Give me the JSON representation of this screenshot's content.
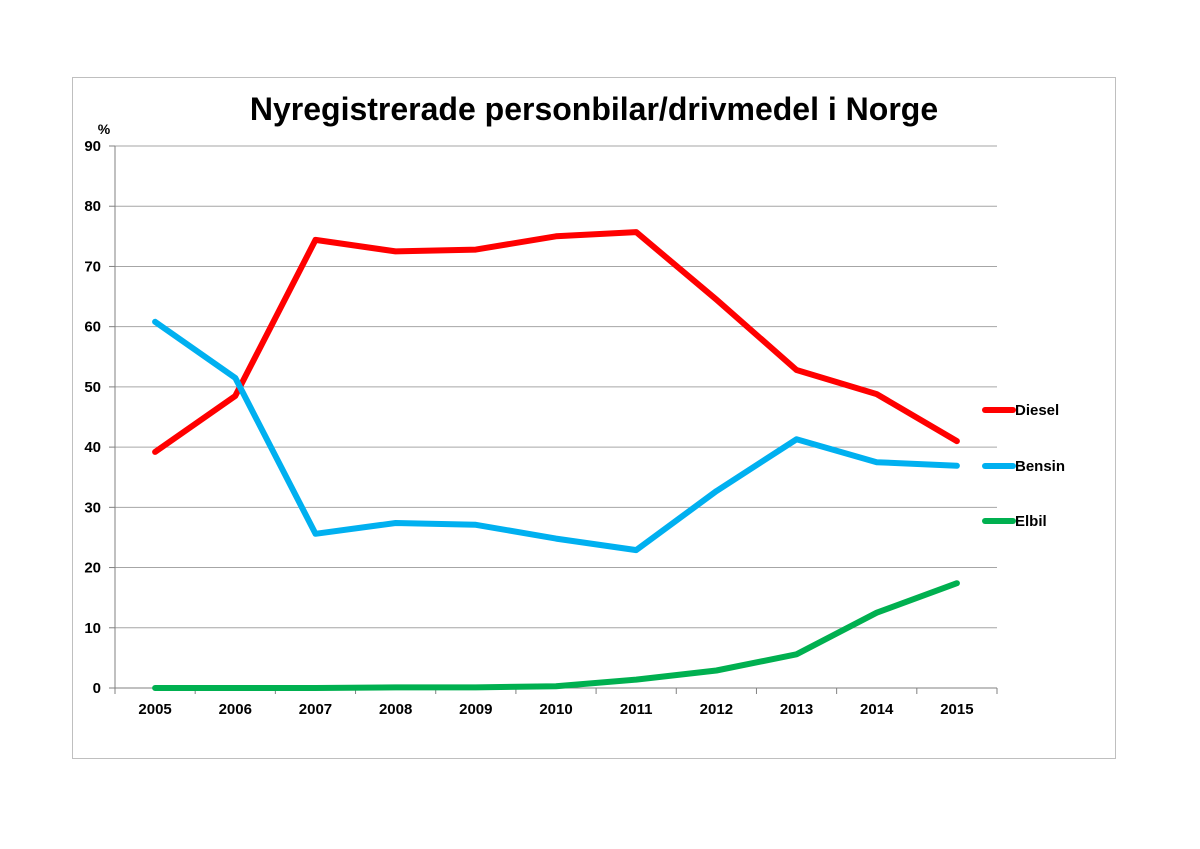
{
  "chart_data": {
    "type": "line",
    "title": "Nyregistrerade personbilar/drivmedel i Norge",
    "ylabel": "%",
    "xlabel": "",
    "ylim": [
      0,
      90
    ],
    "yticks": [
      0,
      10,
      20,
      30,
      40,
      50,
      60,
      70,
      80,
      90
    ],
    "categories": [
      "2005",
      "2006",
      "2007",
      "2008",
      "2009",
      "2010",
      "2011",
      "2012",
      "2013",
      "2014",
      "2015"
    ],
    "grid": true,
    "legend_position": "right",
    "series": [
      {
        "name": "Diesel",
        "color": "#ff0000",
        "values": [
          39.2,
          48.5,
          74.4,
          72.5,
          72.8,
          75.0,
          75.7,
          64.5,
          52.8,
          48.8,
          41.0
        ]
      },
      {
        "name": "Bensin",
        "color": "#00b0f0",
        "values": [
          60.8,
          51.5,
          25.6,
          27.4,
          27.1,
          24.8,
          22.9,
          32.7,
          41.3,
          37.5,
          36.9
        ]
      },
      {
        "name": "Elbil",
        "color": "#00b050",
        "values": [
          0.0,
          0.0,
          0.0,
          0.1,
          0.1,
          0.3,
          1.4,
          2.9,
          5.6,
          12.5,
          17.4
        ]
      }
    ]
  }
}
